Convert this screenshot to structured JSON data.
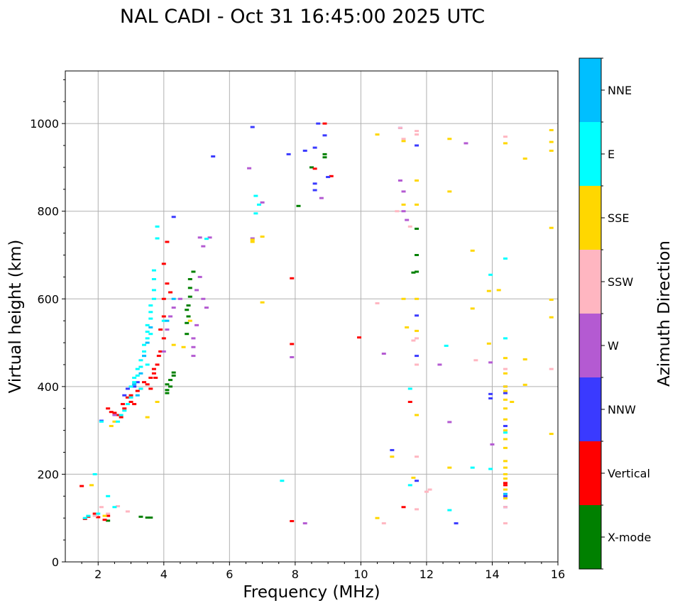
{
  "chart_data": {
    "type": "scatter",
    "title": "NAL CADI - Oct 31 16:45:00 2025 UTC",
    "xlabel": "Frequency (MHz)",
    "ylabel": "Virtual height (km)",
    "xlim": [
      1,
      16
    ],
    "ylim": [
      0,
      1120
    ],
    "x_ticks": [
      "2",
      "4",
      "6",
      "8",
      "10",
      "12",
      "14",
      "16"
    ],
    "x_tick_values": [
      2,
      4,
      6,
      8,
      10,
      12,
      14,
      16
    ],
    "y_ticks": [
      "0",
      "200",
      "400",
      "600",
      "800",
      "1000"
    ],
    "y_tick_values": [
      0,
      200,
      400,
      600,
      800,
      1000
    ],
    "grid": true,
    "colorbar": {
      "title": "Azimuth Direction",
      "categories": [
        {
          "name": "X-mode",
          "color": "#008000"
        },
        {
          "name": "Vertical",
          "color": "#ff0000"
        },
        {
          "name": "NNW",
          "color": "#3a3aff"
        },
        {
          "name": "W",
          "color": "#b45ad2"
        },
        {
          "name": "SSW",
          "color": "#ffb6c1"
        },
        {
          "name": "SSE",
          "color": "#ffd700"
        },
        {
          "name": "E",
          "color": "#00ffff"
        },
        {
          "name": "NNE",
          "color": "#00bfff"
        }
      ]
    },
    "series": [
      {
        "name": "X-mode",
        "points": [
          [
            3.5,
            101
          ],
          [
            3.6,
            101
          ],
          [
            3.3,
            103
          ],
          [
            4.1,
            385
          ],
          [
            4.1,
            392
          ],
          [
            4.2,
            400
          ],
          [
            4.2,
            415
          ],
          [
            4.3,
            425
          ],
          [
            4.3,
            432
          ],
          [
            4.1,
            405
          ],
          [
            4.7,
            520
          ],
          [
            4.7,
            545
          ],
          [
            4.7,
            575
          ],
          [
            4.8,
            605
          ],
          [
            4.8,
            625
          ],
          [
            4.8,
            645
          ],
          [
            4.75,
            560
          ],
          [
            4.75,
            585
          ],
          [
            4.9,
            662
          ],
          [
            8.1,
            812
          ],
          [
            8.5,
            900
          ],
          [
            8.9,
            923
          ],
          [
            8.9,
            930
          ],
          [
            11.6,
            660
          ],
          [
            11.7,
            700
          ],
          [
            11.7,
            760
          ],
          [
            11.7,
            662
          ],
          [
            2.3,
            94
          ]
        ]
      },
      {
        "name": "Vertical",
        "points": [
          [
            1.5,
            173
          ],
          [
            1.6,
            98
          ],
          [
            1.7,
            103
          ],
          [
            1.9,
            110
          ],
          [
            2.0,
            102
          ],
          [
            2.2,
            96
          ],
          [
            2.3,
            105
          ],
          [
            2.3,
            350
          ],
          [
            2.4,
            342
          ],
          [
            2.5,
            340
          ],
          [
            2.6,
            335
          ],
          [
            2.7,
            330
          ],
          [
            2.75,
            360
          ],
          [
            2.8,
            350
          ],
          [
            2.9,
            375
          ],
          [
            3.0,
            380
          ],
          [
            3.1,
            360
          ],
          [
            3.2,
            390
          ],
          [
            3.3,
            395
          ],
          [
            3.4,
            410
          ],
          [
            3.5,
            405
          ],
          [
            3.6,
            420
          ],
          [
            3.7,
            440
          ],
          [
            3.8,
            450
          ],
          [
            3.9,
            480
          ],
          [
            4.0,
            510
          ],
          [
            4.0,
            560
          ],
          [
            4.0,
            600
          ],
          [
            4.0,
            680
          ],
          [
            4.1,
            635
          ],
          [
            4.1,
            730
          ],
          [
            4.2,
            615
          ],
          [
            3.9,
            530
          ],
          [
            3.85,
            470
          ],
          [
            3.7,
            430
          ],
          [
            3.0,
            365
          ],
          [
            3.6,
            395
          ],
          [
            3.75,
            420
          ],
          [
            7.9,
            93
          ],
          [
            7.9,
            497
          ],
          [
            7.9,
            647
          ],
          [
            8.6,
            897
          ],
          [
            8.9,
            1000
          ],
          [
            9.1,
            880
          ],
          [
            9.95,
            512
          ],
          [
            11.3,
            125
          ],
          [
            11.5,
            365
          ],
          [
            14.4,
            180
          ],
          [
            14.4,
            175
          ]
        ]
      },
      {
        "name": "NNW",
        "points": [
          [
            5.5,
            925
          ],
          [
            6.7,
            992
          ],
          [
            7.8,
            930
          ],
          [
            8.3,
            938
          ],
          [
            8.6,
            863
          ],
          [
            8.6,
            848
          ],
          [
            8.6,
            945
          ],
          [
            8.7,
            1000
          ],
          [
            8.9,
            973
          ],
          [
            9.0,
            878
          ],
          [
            10.95,
            255
          ],
          [
            11.2,
            990
          ],
          [
            11.7,
            950
          ],
          [
            11.7,
            470
          ],
          [
            11.7,
            185
          ],
          [
            11.7,
            562
          ],
          [
            12.9,
            88
          ],
          [
            13.95,
            383
          ],
          [
            13.95,
            373
          ],
          [
            14.4,
            385
          ],
          [
            14.4,
            400
          ],
          [
            14.4,
            310
          ],
          [
            14.4,
            150
          ],
          [
            14.4,
            125
          ],
          [
            3.2,
            410
          ],
          [
            2.8,
            380
          ],
          [
            2.9,
            395
          ],
          [
            3.1,
            400
          ],
          [
            4.3,
            787
          ],
          [
            2.1,
            322
          ]
        ]
      },
      {
        "name": "W",
        "points": [
          [
            4.0,
            480
          ],
          [
            4.1,
            530
          ],
          [
            4.2,
            560
          ],
          [
            4.3,
            580
          ],
          [
            4.5,
            600
          ],
          [
            4.9,
            470
          ],
          [
            4.9,
            490
          ],
          [
            4.9,
            510
          ],
          [
            5.0,
            540
          ],
          [
            5.0,
            620
          ],
          [
            5.1,
            650
          ],
          [
            5.2,
            600
          ],
          [
            5.1,
            740
          ],
          [
            5.2,
            720
          ],
          [
            5.3,
            580
          ],
          [
            5.4,
            740
          ],
          [
            6.6,
            898
          ],
          [
            6.7,
            738
          ],
          [
            7.0,
            820
          ],
          [
            7.9,
            467
          ],
          [
            8.8,
            830
          ],
          [
            8.3,
            88
          ],
          [
            10.7,
            475
          ],
          [
            11.2,
            870
          ],
          [
            11.3,
            845
          ],
          [
            11.3,
            800
          ],
          [
            11.4,
            780
          ],
          [
            12.4,
            450
          ],
          [
            12.7,
            319
          ],
          [
            13.2,
            955
          ],
          [
            14.0,
            268
          ],
          [
            13.95,
            455
          ],
          [
            2.5,
            335
          ]
        ]
      },
      {
        "name": "SSW",
        "points": [
          [
            1.9,
            105
          ],
          [
            2.1,
            125
          ],
          [
            2.3,
            110
          ],
          [
            2.6,
            127
          ],
          [
            2.9,
            115
          ],
          [
            10.5,
            590
          ],
          [
            10.7,
            88
          ],
          [
            11.1,
            800
          ],
          [
            11.2,
            990
          ],
          [
            11.3,
            965
          ],
          [
            11.5,
            765
          ],
          [
            11.6,
            505
          ],
          [
            11.7,
            120
          ],
          [
            11.7,
            975
          ],
          [
            11.7,
            510
          ],
          [
            11.7,
            450
          ],
          [
            11.7,
            240
          ],
          [
            11.7,
            983
          ],
          [
            12.0,
            160
          ],
          [
            12.1,
            165
          ],
          [
            13.5,
            460
          ],
          [
            14.4,
            440
          ],
          [
            14.4,
            88
          ],
          [
            14.4,
            970
          ],
          [
            14.4,
            125
          ],
          [
            15.8,
            440
          ]
        ]
      },
      {
        "name": "SSE",
        "points": [
          [
            1.8,
            175
          ],
          [
            2.2,
            105
          ],
          [
            2.4,
            310
          ],
          [
            2.5,
            320
          ],
          [
            3.5,
            330
          ],
          [
            3.8,
            365
          ],
          [
            4.3,
            495
          ],
          [
            4.6,
            490
          ],
          [
            4.8,
            550
          ],
          [
            6.7,
            735
          ],
          [
            6.7,
            730
          ],
          [
            7.0,
            742
          ],
          [
            7.0,
            592
          ],
          [
            10.5,
            975
          ],
          [
            10.5,
            100
          ],
          [
            10.95,
            240
          ],
          [
            11.3,
            960
          ],
          [
            11.3,
            815
          ],
          [
            11.3,
            600
          ],
          [
            11.4,
            535
          ],
          [
            11.6,
            192
          ],
          [
            11.7,
            600
          ],
          [
            11.7,
            527
          ],
          [
            11.7,
            335
          ],
          [
            11.7,
            870
          ],
          [
            11.7,
            815
          ],
          [
            12.7,
            965
          ],
          [
            12.7,
            845
          ],
          [
            12.7,
            215
          ],
          [
            13.4,
            710
          ],
          [
            13.4,
            578
          ],
          [
            13.9,
            498
          ],
          [
            13.9,
            618
          ],
          [
            14.2,
            620
          ],
          [
            14.4,
            955
          ],
          [
            14.4,
            465
          ],
          [
            14.4,
            430
          ],
          [
            14.4,
            400
          ],
          [
            14.4,
            390
          ],
          [
            14.4,
            370
          ],
          [
            14.4,
            350
          ],
          [
            14.4,
            325
          ],
          [
            14.4,
            300
          ],
          [
            14.4,
            280
          ],
          [
            14.4,
            260
          ],
          [
            14.4,
            230
          ],
          [
            14.4,
            215
          ],
          [
            14.4,
            200
          ],
          [
            14.4,
            190
          ],
          [
            14.4,
            165
          ],
          [
            14.4,
            145
          ],
          [
            14.6,
            365
          ],
          [
            15.0,
            920
          ],
          [
            15.0,
            462
          ],
          [
            15.0,
            404
          ],
          [
            15.8,
            985
          ],
          [
            15.8,
            958
          ],
          [
            15.8,
            938
          ],
          [
            15.8,
            762
          ],
          [
            15.8,
            598
          ],
          [
            15.8,
            558
          ],
          [
            15.8,
            292
          ]
        ]
      },
      {
        "name": "E",
        "points": [
          [
            1.9,
            200
          ],
          [
            2.1,
            320
          ],
          [
            2.3,
            150
          ],
          [
            2.5,
            125
          ],
          [
            2.6,
            320
          ],
          [
            2.7,
            335
          ],
          [
            2.8,
            345
          ],
          [
            2.9,
            360
          ],
          [
            3.0,
            375
          ],
          [
            3.0,
            400
          ],
          [
            3.1,
            410
          ],
          [
            3.1,
            420
          ],
          [
            3.2,
            425
          ],
          [
            3.2,
            440
          ],
          [
            3.3,
            445
          ],
          [
            3.3,
            460
          ],
          [
            3.4,
            470
          ],
          [
            3.4,
            480
          ],
          [
            3.4,
            495
          ],
          [
            3.5,
            510
          ],
          [
            3.5,
            525
          ],
          [
            3.5,
            540
          ],
          [
            3.6,
            555
          ],
          [
            3.6,
            570
          ],
          [
            3.6,
            585
          ],
          [
            3.7,
            600
          ],
          [
            3.7,
            620
          ],
          [
            3.7,
            645
          ],
          [
            3.7,
            665
          ],
          [
            3.8,
            765
          ],
          [
            3.8,
            738
          ],
          [
            3.3,
            395
          ],
          [
            3.5,
            450
          ],
          [
            3.6,
            520
          ],
          [
            4.0,
            550
          ],
          [
            5.3,
            737
          ],
          [
            6.8,
            835
          ],
          [
            6.9,
            815
          ],
          [
            6.8,
            795
          ],
          [
            7.6,
            185
          ],
          [
            11.5,
            395
          ],
          [
            11.5,
            175
          ],
          [
            12.6,
            493
          ],
          [
            12.7,
            118
          ],
          [
            13.4,
            215
          ],
          [
            13.95,
            655
          ],
          [
            13.95,
            212
          ],
          [
            14.4,
            510
          ],
          [
            14.4,
            692
          ],
          [
            14.4,
            295
          ],
          [
            1.6,
            100
          ],
          [
            1.7,
            105
          ],
          [
            2.0,
            110
          ]
        ]
      },
      {
        "name": "NNE",
        "points": [
          [
            3.1,
            405
          ],
          [
            3.3,
            430
          ],
          [
            3.4,
            470
          ],
          [
            3.5,
            500
          ],
          [
            3.6,
            535
          ],
          [
            4.1,
            550
          ],
          [
            4.3,
            600
          ],
          [
            3.2,
            380
          ],
          [
            14.4,
            155
          ]
        ]
      }
    ]
  }
}
